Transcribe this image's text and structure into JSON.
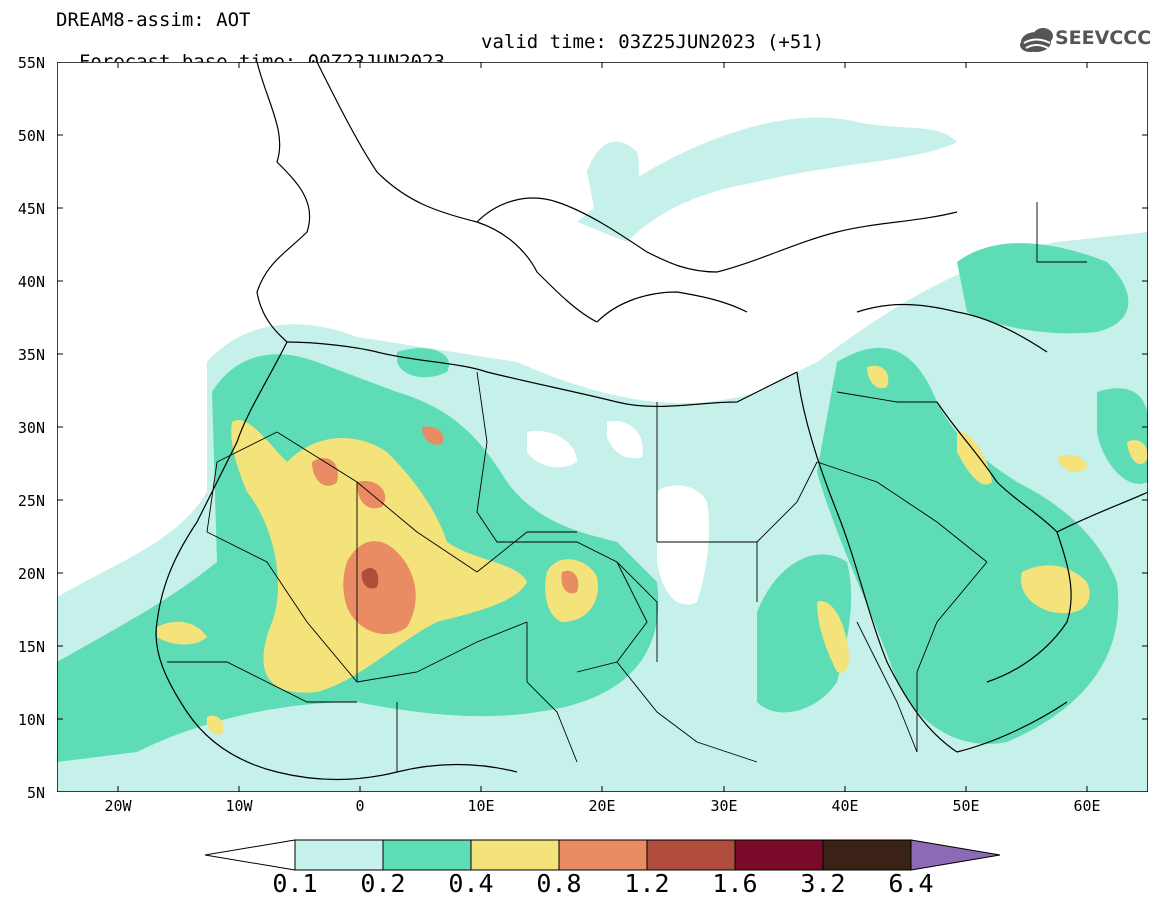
{
  "header": {
    "title_line": "DREAM8-assim: AOT",
    "base_time_line": "Forecast base time: 00Z23JUN2023",
    "valid_time_line": "valid time: 03Z25JUN2023 (+51)"
  },
  "logo": {
    "text": "SEEVCCC",
    "icon": "cloud-logo-icon"
  },
  "map": {
    "lon_range": [
      -25,
      65
    ],
    "lat_range": [
      5,
      55
    ],
    "y_tick_labels": [
      "55N",
      "50N",
      "45N",
      "40N",
      "35N",
      "30N",
      "25N",
      "20N",
      "15N",
      "10N",
      "5N"
    ],
    "x_tick_labels": [
      "20W",
      "10W",
      "0",
      "10E",
      "20E",
      "30E",
      "40E",
      "50E",
      "60E"
    ]
  },
  "legend": {
    "labels": [
      "0.1",
      "0.2",
      "0.4",
      "0.8",
      "1.2",
      "1.6",
      "3.2",
      "6.4"
    ],
    "colors": [
      "#c6f0ea",
      "#5ddcb6",
      "#f4e27a",
      "#e98c64",
      "#b04c3c",
      "#7a0a2a",
      "#3a2316",
      "#8c6ab4"
    ]
  }
}
